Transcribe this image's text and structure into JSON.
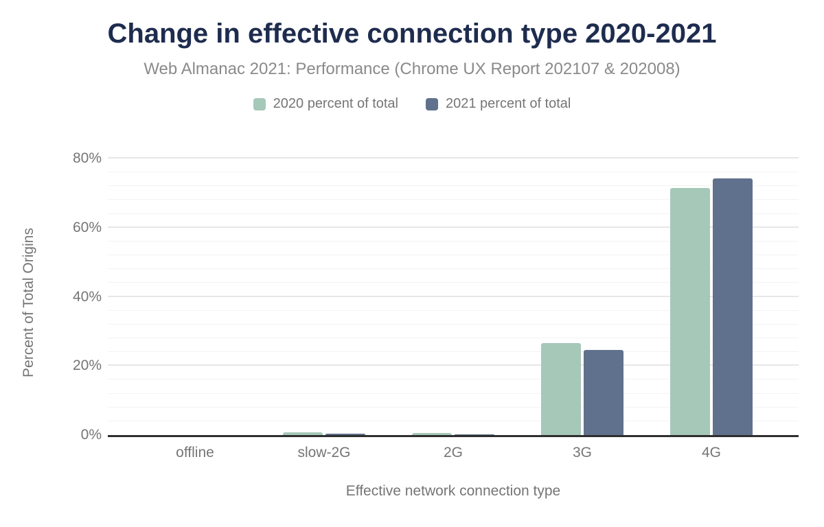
{
  "header": {
    "title": "Change in effective connection type 2020-2021",
    "subtitle": "Web Almanac 2021: Performance (Chrome UX Report 202107 & 202008)"
  },
  "colors": {
    "title_text": "#1e2c4e",
    "muted_text": "#757575",
    "subtitle_text": "#8a8a8a",
    "axis_line": "#2e2e2e",
    "series_2020": "#a6c8b8",
    "series_2021": "#5f718c"
  },
  "chart_data": {
    "type": "bar",
    "title": "Change in effective connection type 2020-2021",
    "subtitle": "Web Almanac 2021: Performance (Chrome UX Report 202107 & 202008)",
    "categories": [
      "offline",
      "slow-2G",
      "2G",
      "3G",
      "4G"
    ],
    "series": [
      {
        "name": "2020 percent of total",
        "color": "#a6c8b8",
        "values": [
          0.0,
          0.9,
          0.6,
          26.6,
          71.4
        ]
      },
      {
        "name": "2021 percent of total",
        "color": "#5f718c",
        "values": [
          0.0,
          0.5,
          0.2,
          24.6,
          74.2
        ]
      }
    ],
    "xlabel": "Effective network connection type",
    "ylabel": "Percent of Total Origins",
    "ylim": [
      0,
      80
    ],
    "yticks": [
      0,
      20,
      40,
      60,
      80
    ],
    "ytick_suffix": "%",
    "minor_grid_step": 4,
    "grid": true,
    "legend_position": "top"
  }
}
